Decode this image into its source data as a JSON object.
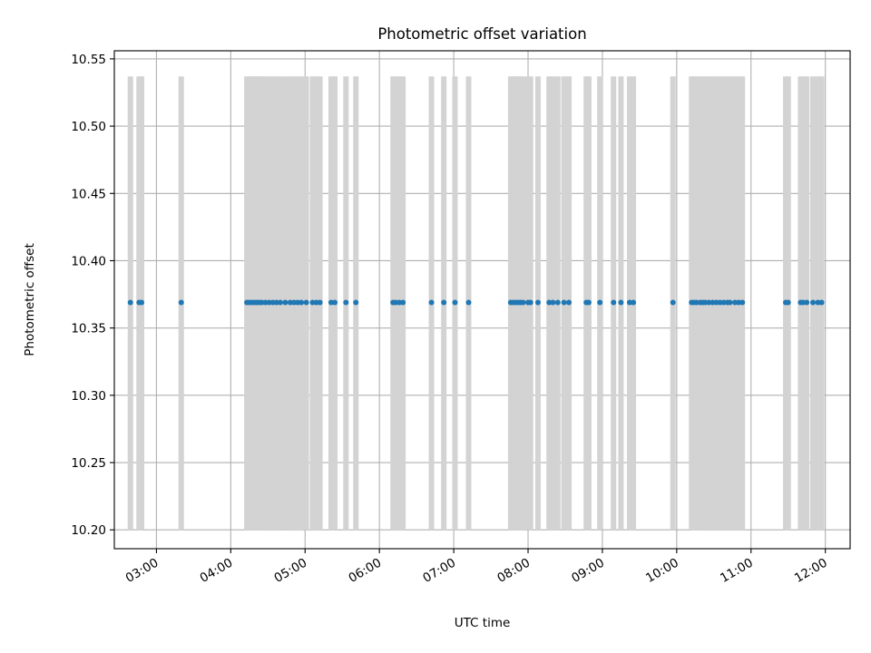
{
  "chart_data": {
    "type": "scatter",
    "title": "Photometric offset variation",
    "xlabel": "UTC time",
    "ylabel": "Photometric offset",
    "xlim": [
      "02:26",
      "12:20"
    ],
    "ylim": [
      10.186,
      10.556
    ],
    "x_ticks": [
      "03:00",
      "04:00",
      "05:00",
      "06:00",
      "07:00",
      "08:00",
      "09:00",
      "10:00",
      "11:00",
      "12:00"
    ],
    "y_ticks": [
      "10.20",
      "10.25",
      "10.30",
      "10.35",
      "10.40",
      "10.45",
      "10.50",
      "10.55"
    ],
    "grid": true,
    "band_range": [
      10.2,
      10.537
    ],
    "band_color": "#d3d3d3",
    "point_color": "#1f77b4",
    "points_y": 10.369,
    "points_x": [
      "02:39",
      "02:46",
      "02:48",
      "03:20",
      "04:13",
      "04:15",
      "04:17",
      "04:19",
      "04:21",
      "04:23",
      "04:25",
      "04:28",
      "04:31",
      "04:34",
      "04:37",
      "04:40",
      "04:44",
      "04:48",
      "04:51",
      "04:54",
      "04:57",
      "05:01",
      "05:06",
      "05:09",
      "05:12",
      "05:21",
      "05:24",
      "05:33",
      "05:41",
      "06:11",
      "06:13",
      "06:16",
      "06:19",
      "06:42",
      "06:52",
      "07:01",
      "07:12",
      "07:46",
      "07:48",
      "07:50",
      "07:52",
      "07:54",
      "07:56",
      "08:00",
      "08:02",
      "08:08",
      "08:17",
      "08:20",
      "08:24",
      "08:29",
      "08:33",
      "08:47",
      "08:49",
      "08:58",
      "09:09",
      "09:15",
      "09:22",
      "09:25",
      "09:57",
      "10:12",
      "10:14",
      "10:16",
      "10:19",
      "10:21",
      "10:23",
      "10:26",
      "10:29",
      "10:32",
      "10:35",
      "10:38",
      "10:41",
      "10:43",
      "10:47",
      "10:50",
      "10:53",
      "11:28",
      "11:30",
      "11:40",
      "11:42",
      "11:45",
      "11:50",
      "11:54",
      "11:57"
    ]
  }
}
